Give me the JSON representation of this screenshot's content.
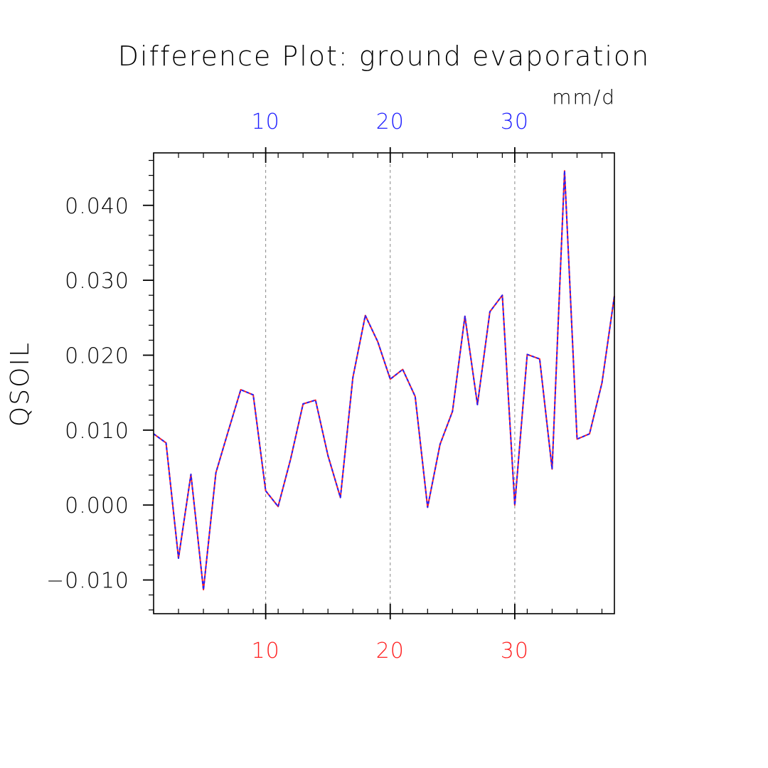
{
  "chart_data": {
    "type": "line",
    "title": "Difference Plot: ground evaporation",
    "units": "mm/d",
    "ylabel": "QSOIL",
    "xlim": [
      1,
      38
    ],
    "ylim": [
      -0.0145,
      0.047
    ],
    "x_ticks": [
      10,
      20,
      30
    ],
    "x_tick_labels": [
      "10",
      "20",
      "30"
    ],
    "y_ticks": [
      -0.01,
      0,
      0.01,
      0.02,
      0.03,
      0.04
    ],
    "y_tick_labels": [
      "−0.010",
      "0.000",
      "0.010",
      "0.020",
      "0.030",
      "0.040"
    ],
    "grid": "vertical dashed at major x ticks",
    "colors": {
      "bottom_axis_labels": "#ff2020",
      "top_axis_labels": "#2020ff",
      "axes": "#000000",
      "grid": "#888888"
    },
    "series": [
      {
        "color": "#ff2020",
        "style": "solid",
        "x": [
          1,
          2,
          3,
          4,
          5,
          6,
          7,
          8,
          9,
          10,
          11,
          12,
          13,
          14,
          15,
          16,
          17,
          18,
          19,
          20,
          21,
          22,
          23,
          24,
          25,
          26,
          27,
          28,
          29,
          30,
          31,
          32,
          33,
          34,
          35,
          36,
          37,
          38
        ],
        "values": [
          0.0095,
          0.0083,
          -0.0071,
          0.0041,
          -0.0113,
          0.0043,
          0.0099,
          0.0154,
          0.0147,
          0.0019,
          -0.0002,
          0.0061,
          0.0135,
          0.014,
          0.0066,
          0.001,
          0.017,
          0.0253,
          0.0218,
          0.0168,
          0.0181,
          0.0145,
          -0.0003,
          0.0081,
          0.0125,
          0.0252,
          0.0134,
          0.0258,
          0.028,
          0.0,
          0.0201,
          0.0195,
          0.0048,
          0.0446,
          0.0088,
          0.0095,
          0.0163,
          0.0279
        ]
      },
      {
        "color": "#2020ff",
        "style": "dashed",
        "x": [
          1,
          2,
          3,
          4,
          5,
          6,
          7,
          8,
          9,
          10,
          11,
          12,
          13,
          14,
          15,
          16,
          17,
          18,
          19,
          20,
          21,
          22,
          23,
          24,
          25,
          26,
          27,
          28,
          29,
          30,
          31,
          32,
          33,
          34,
          35,
          36,
          37,
          38
        ],
        "values": [
          0.0095,
          0.0083,
          -0.0071,
          0.0041,
          -0.0113,
          0.0043,
          0.0099,
          0.0154,
          0.0147,
          0.0019,
          -0.0002,
          0.0061,
          0.0135,
          0.014,
          0.0066,
          0.001,
          0.017,
          0.0253,
          0.0218,
          0.0168,
          0.0181,
          0.0145,
          -0.0003,
          0.0081,
          0.0125,
          0.0252,
          0.0134,
          0.0258,
          0.028,
          0.0,
          0.0201,
          0.0195,
          0.0048,
          0.0446,
          0.0088,
          0.0095,
          0.0163,
          0.0279
        ]
      }
    ]
  }
}
